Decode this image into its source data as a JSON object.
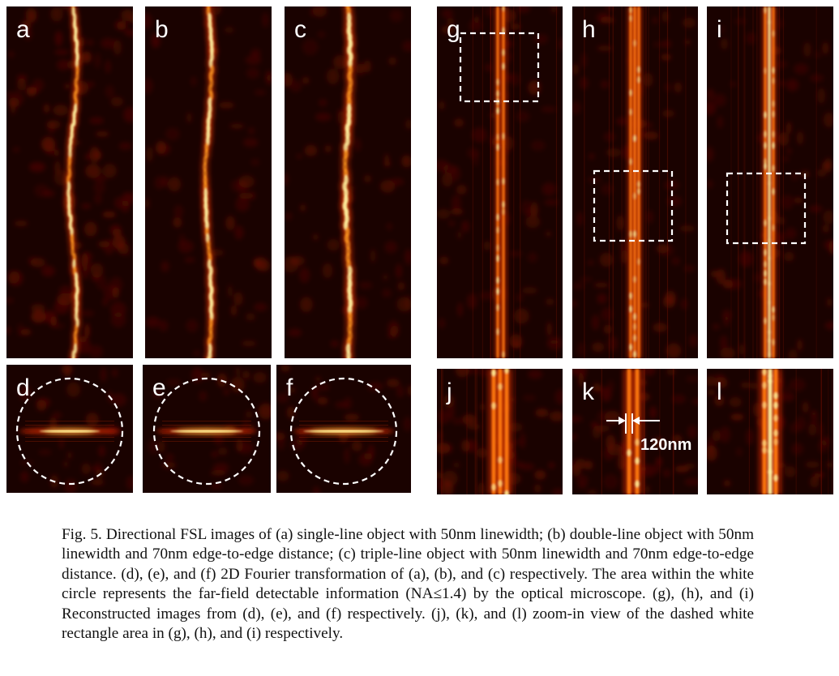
{
  "figure": {
    "panels": [
      {
        "id": "a",
        "label": "a"
      },
      {
        "id": "b",
        "label": "b"
      },
      {
        "id": "c",
        "label": "c"
      },
      {
        "id": "d",
        "label": "d"
      },
      {
        "id": "e",
        "label": "e"
      },
      {
        "id": "f",
        "label": "f"
      },
      {
        "id": "g",
        "label": "g"
      },
      {
        "id": "h",
        "label": "h"
      },
      {
        "id": "i",
        "label": "i"
      },
      {
        "id": "j",
        "label": "j"
      },
      {
        "id": "k",
        "label": "k"
      },
      {
        "id": "l",
        "label": "l"
      }
    ],
    "scale_bar_label": "120nm",
    "colors": {
      "background": "#1a0200",
      "glow": "#ff5a00",
      "core": "#fff2a0",
      "annotation": "#ffffff"
    }
  },
  "caption": "Fig. 5. Directional FSL images of (a) single-line object with 50nm linewidth; (b) double-line object with 50nm linewidth and 70nm edge-to-edge distance; (c) triple-line object with 50nm linewidth and 70nm edge-to-edge distance. (d), (e), and (f) 2D Fourier transformation of (a), (b), and (c) respectively. The area within the white circle represents the far-field detectable information (NA≤1.4) by the optical microscope. (g), (h), and (i) Reconstructed images from (d), (e), and (f) respectively. (j), (k), and (l) zoom-in view of the dashed white rectangle area in (g), (h), and (i) respectively."
}
